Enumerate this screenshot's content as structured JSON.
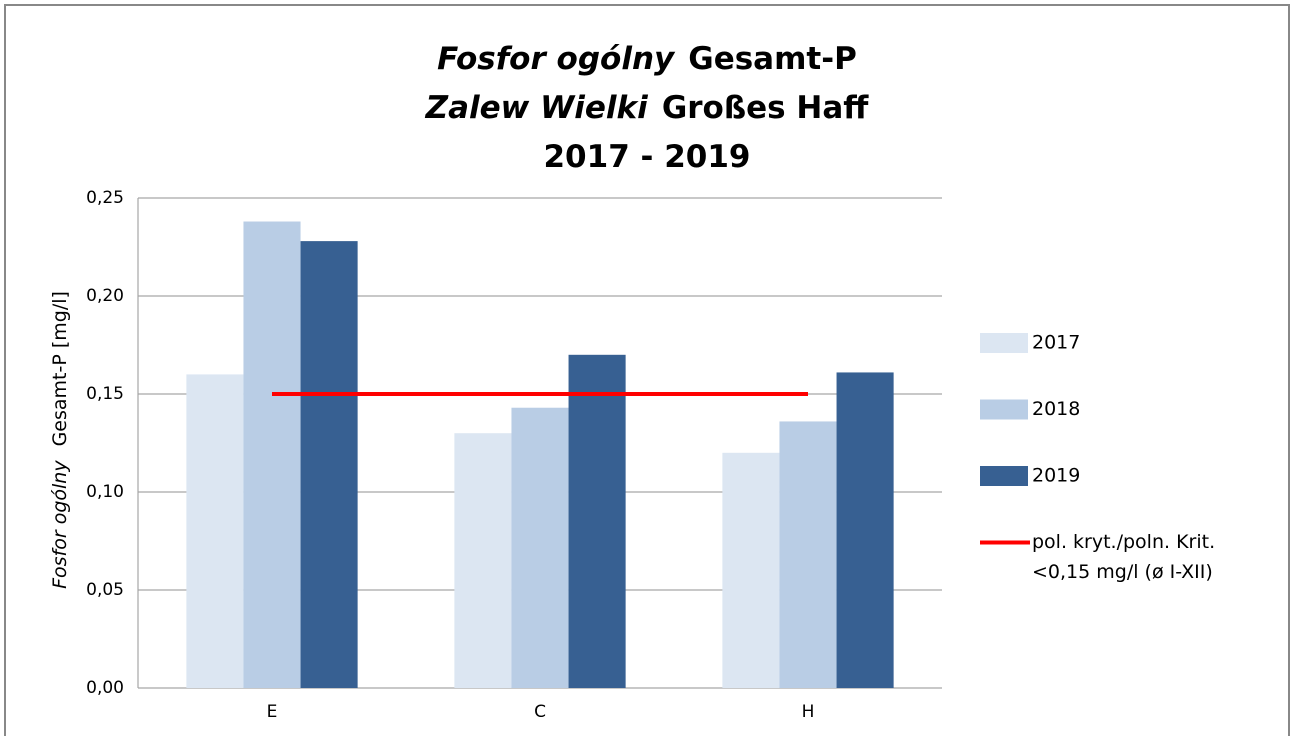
{
  "chart_data": {
    "type": "bar",
    "title_lines": [
      [
        {
          "text": "Fosfor ogólny",
          "italic": true
        },
        {
          "text": "Gesamt-P"
        }
      ],
      [
        {
          "text": "Zalew Wielki",
          "italic": true
        },
        {
          "text": "Großes Haff"
        }
      ],
      [
        {
          "text": "2017 - 2019"
        }
      ]
    ],
    "y_label": [
      {
        "text": "Fosfor ogólny",
        "italic": true
      },
      {
        "text": "Gesamt-P [mg/l]"
      }
    ],
    "categories": [
      "E",
      "C",
      "H"
    ],
    "series": [
      {
        "name": "2017",
        "color": "#dce6f2",
        "values": [
          0.16,
          0.13,
          0.12
        ]
      },
      {
        "name": "2018",
        "color": "#b9cde5",
        "values": [
          0.238,
          0.143,
          0.136
        ]
      },
      {
        "name": "2019",
        "color": "#376092",
        "values": [
          0.228,
          0.17,
          0.161
        ]
      },
      {
        "name": [
          "pol. kryt./poln. Krit.",
          "<0,15 mg/l (ø I-XII)"
        ],
        "type": "line",
        "color": "#ff0000",
        "values": [
          0.15,
          0.15,
          0.15
        ]
      }
    ],
    "ylim": [
      0,
      0.25
    ],
    "yticks": [
      {
        "value": 0,
        "label": "0,00"
      },
      {
        "value": 0.05,
        "label": "0,05"
      },
      {
        "value": 0.1,
        "label": "0,10"
      },
      {
        "value": 0.15,
        "label": "0,15"
      },
      {
        "value": 0.2,
        "label": "0,20"
      },
      {
        "value": 0.25,
        "label": "0,25"
      }
    ],
    "grid": true,
    "legend": "right"
  }
}
